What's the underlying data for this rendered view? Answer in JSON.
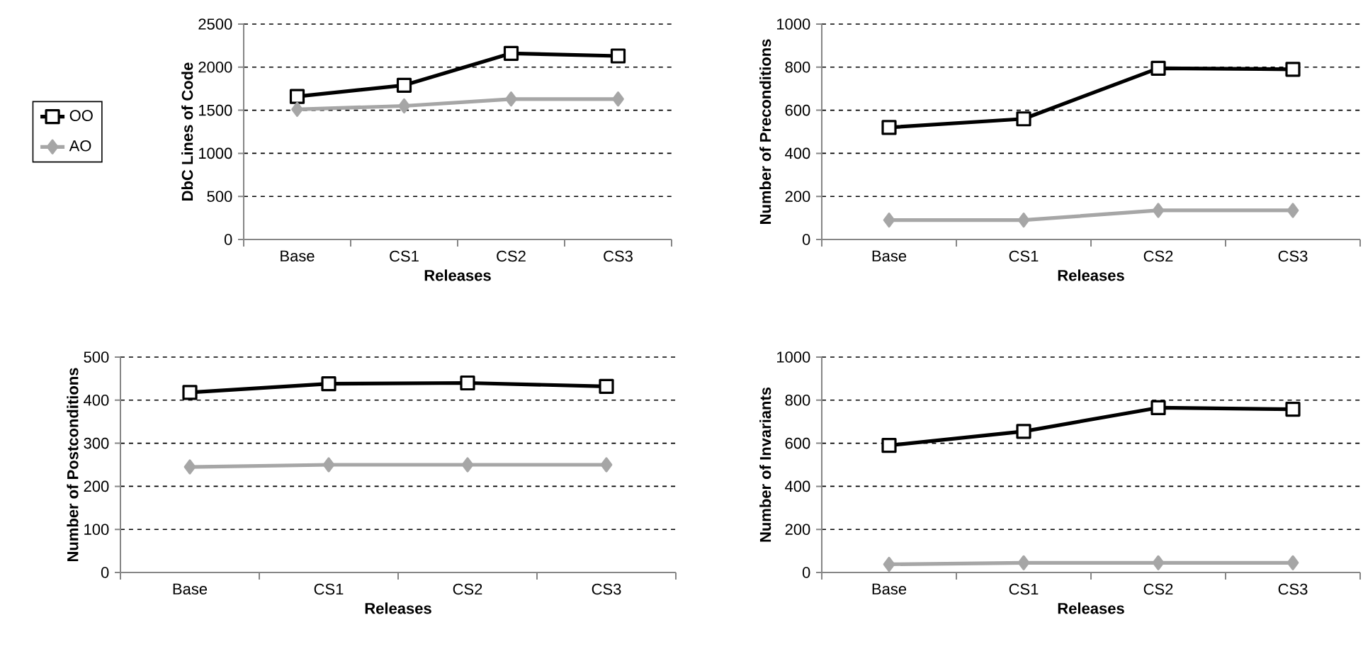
{
  "chart_data": [
    {
      "type": "line",
      "ylabel": "DbC Lines of Code",
      "xlabel": "Releases",
      "categories": [
        "Base",
        "CS1",
        "CS2",
        "CS3"
      ],
      "ylim": [
        0,
        2500
      ],
      "yticks": [
        0,
        500,
        1000,
        1500,
        2000,
        2500
      ],
      "grid": "y",
      "legend": "left",
      "series": [
        {
          "name": "OO",
          "color": "#000000",
          "marker": "square",
          "values": [
            1660,
            1790,
            2160,
            2130
          ]
        },
        {
          "name": "AO",
          "color": "#a6a6a6",
          "marker": "diamond",
          "values": [
            1510,
            1550,
            1630,
            1630
          ]
        }
      ]
    },
    {
      "type": "line",
      "ylabel": "Number of Preconditions",
      "xlabel": "Releases",
      "categories": [
        "Base",
        "CS1",
        "CS2",
        "CS3"
      ],
      "ylim": [
        0,
        1000
      ],
      "yticks": [
        0,
        200,
        400,
        600,
        800,
        1000
      ],
      "grid": "y",
      "series": [
        {
          "color": "#000000",
          "marker": "square",
          "values": [
            520,
            560,
            795,
            790
          ]
        },
        {
          "color": "#a6a6a6",
          "marker": "diamond",
          "values": [
            90,
            90,
            135,
            135
          ]
        }
      ]
    },
    {
      "type": "line",
      "ylabel": "Number of Postconditions",
      "xlabel": "Releases",
      "categories": [
        "Base",
        "CS1",
        "CS2",
        "CS3"
      ],
      "ylim": [
        0,
        500
      ],
      "yticks": [
        0,
        100,
        200,
        300,
        400,
        500
      ],
      "grid": "y",
      "series": [
        {
          "color": "#000000",
          "marker": "square",
          "values": [
            418,
            438,
            440,
            432
          ]
        },
        {
          "color": "#a6a6a6",
          "marker": "diamond",
          "values": [
            245,
            250,
            250,
            250
          ]
        }
      ]
    },
    {
      "type": "line",
      "ylabel": "Number of Invariants",
      "xlabel": "Releases",
      "categories": [
        "Base",
        "CS1",
        "CS2",
        "CS3"
      ],
      "ylim": [
        0,
        1000
      ],
      "yticks": [
        0,
        200,
        400,
        600,
        800,
        1000
      ],
      "grid": "y",
      "series": [
        {
          "color": "#000000",
          "marker": "square",
          "values": [
            590,
            655,
            765,
            758
          ]
        },
        {
          "color": "#a6a6a6",
          "marker": "diamond",
          "values": [
            38,
            45,
            45,
            45
          ]
        }
      ]
    }
  ]
}
